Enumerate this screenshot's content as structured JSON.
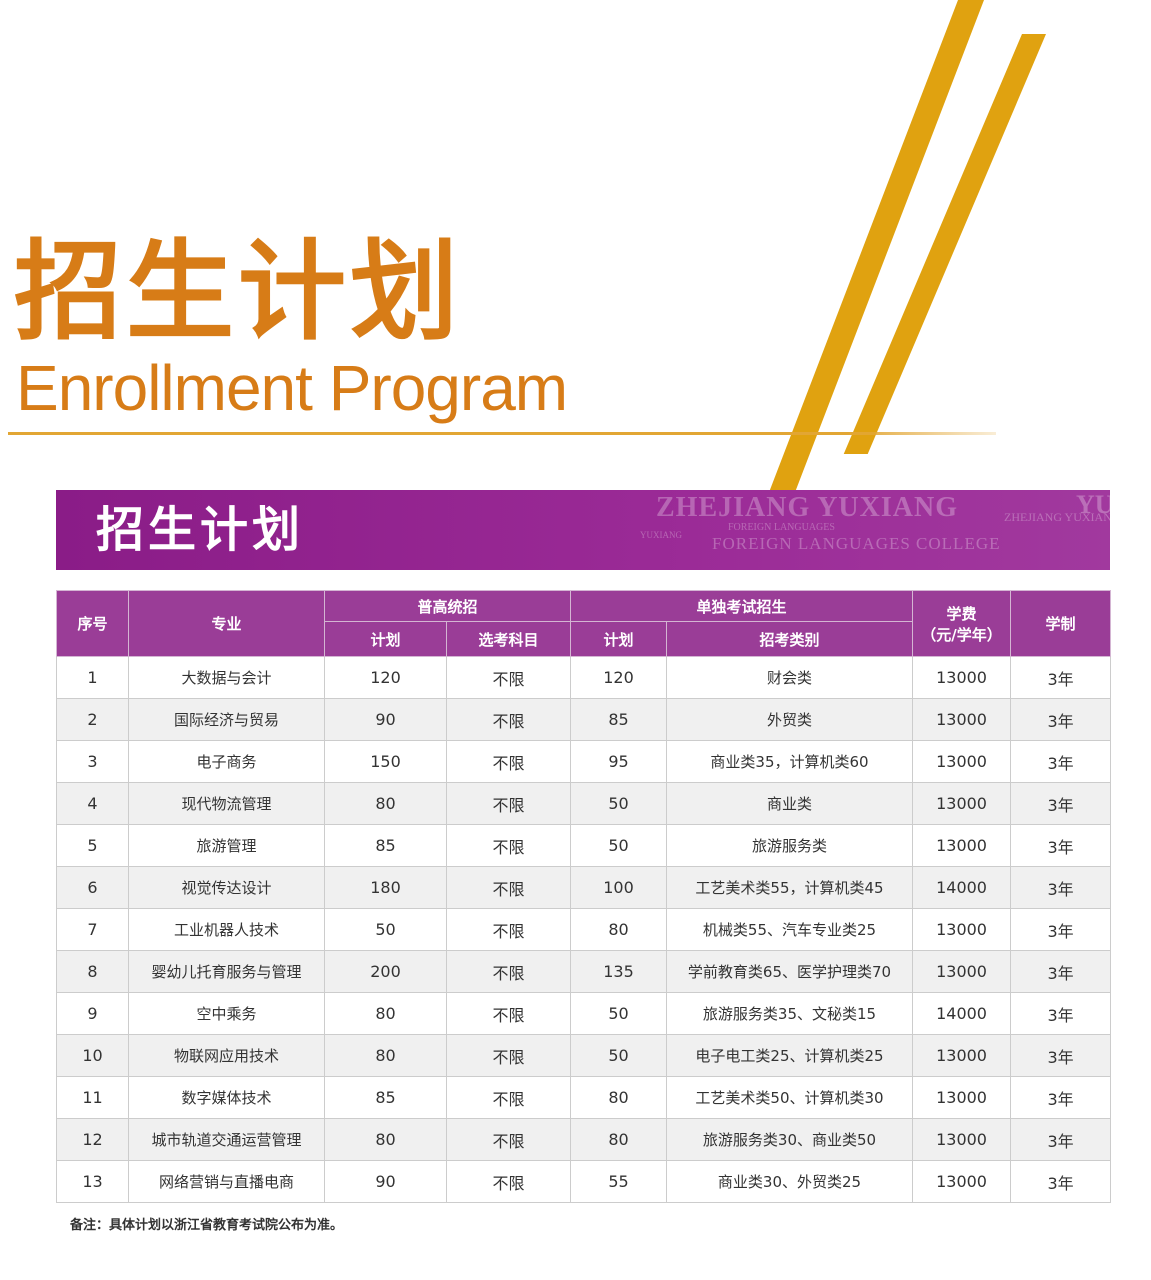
{
  "header": {
    "title_cn": "招生计划",
    "title_en": "Enrollment Program"
  },
  "banner": {
    "title": "招生计划",
    "watermark": {
      "line1": "ZHEJIANG YUXIANG",
      "line2": "FOREIGN LANGUAGES",
      "line3": "FOREIGN LANGUAGES COLLEGE",
      "line4": "YUXIANG",
      "line5": "ZHEJIANG YUXIANG",
      "line6": "YU"
    },
    "color": "#8a1c87"
  },
  "table": {
    "headers": {
      "seq": "序号",
      "major": "专业",
      "general": "普高统招",
      "general_plan": "计划",
      "general_subjects": "选考科目",
      "separate": "单独考试招生",
      "separate_plan": "计划",
      "separate_category": "招考类别",
      "tuition": "学费",
      "tuition_unit": "（元/学年）",
      "duration": "学制"
    },
    "rows": [
      {
        "seq": "1",
        "major": "大数据与会计",
        "g_plan": "120",
        "g_subj": "不限",
        "s_plan": "120",
        "s_cat": "财会类",
        "tuition": "13000",
        "duration": "3年"
      },
      {
        "seq": "2",
        "major": "国际经济与贸易",
        "g_plan": "90",
        "g_subj": "不限",
        "s_plan": "85",
        "s_cat": "外贸类",
        "tuition": "13000",
        "duration": "3年"
      },
      {
        "seq": "3",
        "major": "电子商务",
        "g_plan": "150",
        "g_subj": "不限",
        "s_plan": "95",
        "s_cat": "商业类35，计算机类60",
        "tuition": "13000",
        "duration": "3年"
      },
      {
        "seq": "4",
        "major": "现代物流管理",
        "g_plan": "80",
        "g_subj": "不限",
        "s_plan": "50",
        "s_cat": "商业类",
        "tuition": "13000",
        "duration": "3年"
      },
      {
        "seq": "5",
        "major": "旅游管理",
        "g_plan": "85",
        "g_subj": "不限",
        "s_plan": "50",
        "s_cat": "旅游服务类",
        "tuition": "13000",
        "duration": "3年"
      },
      {
        "seq": "6",
        "major": "视觉传达设计",
        "g_plan": "180",
        "g_subj": "不限",
        "s_plan": "100",
        "s_cat": "工艺美术类55，计算机类45",
        "tuition": "14000",
        "duration": "3年"
      },
      {
        "seq": "7",
        "major": "工业机器人技术",
        "g_plan": "50",
        "g_subj": "不限",
        "s_plan": "80",
        "s_cat": "机械类55、汽车专业类25",
        "tuition": "13000",
        "duration": "3年"
      },
      {
        "seq": "8",
        "major": "婴幼儿托育服务与管理",
        "g_plan": "200",
        "g_subj": "不限",
        "s_plan": "135",
        "s_cat": "学前教育类65、医学护理类70",
        "tuition": "13000",
        "duration": "3年"
      },
      {
        "seq": "9",
        "major": "空中乘务",
        "g_plan": "80",
        "g_subj": "不限",
        "s_plan": "50",
        "s_cat": "旅游服务类35、文秘类15",
        "tuition": "14000",
        "duration": "3年"
      },
      {
        "seq": "10",
        "major": "物联网应用技术",
        "g_plan": "80",
        "g_subj": "不限",
        "s_plan": "50",
        "s_cat": "电子电工类25、计算机类25",
        "tuition": "13000",
        "duration": "3年"
      },
      {
        "seq": "11",
        "major": "数字媒体技术",
        "g_plan": "85",
        "g_subj": "不限",
        "s_plan": "80",
        "s_cat": "工艺美术类50、计算机类30",
        "tuition": "13000",
        "duration": "3年"
      },
      {
        "seq": "12",
        "major": "城市轨道交通运营管理",
        "g_plan": "80",
        "g_subj": "不限",
        "s_plan": "80",
        "s_cat": "旅游服务类30、商业类50",
        "tuition": "13000",
        "duration": "3年"
      },
      {
        "seq": "13",
        "major": "网络营销与直播电商",
        "g_plan": "90",
        "g_subj": "不限",
        "s_plan": "55",
        "s_cat": "商业类30、外贸类25",
        "tuition": "13000",
        "duration": "3年"
      }
    ]
  },
  "note": "备注：具体计划以浙江省教育考试院公布为准。",
  "colors": {
    "title_orange": "#d77c17",
    "stripe_gold": "#e0a210",
    "header_purple": "#9a3d97"
  }
}
